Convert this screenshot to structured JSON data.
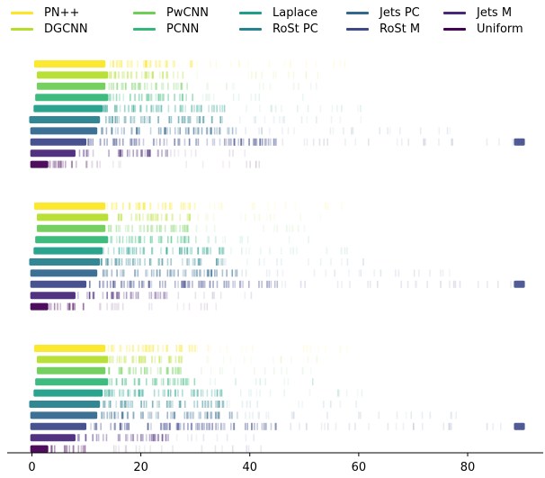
{
  "chart_data": {
    "type": "heatmap",
    "description_type": "strip",
    "x_axis": {
      "ticks": [
        0,
        20,
        40,
        60,
        80
      ],
      "range": [
        -4,
        94
      ]
    },
    "series": [
      {
        "name": "PN++",
        "color": "#fde725",
        "bands": [
          [
            0.4,
            13.5,
            0.95
          ],
          [
            13.5,
            30,
            0.35
          ],
          [
            30,
            59.5,
            0.1
          ]
        ]
      },
      {
        "name": "DGCNN",
        "color": "#b5de2b",
        "bands": [
          [
            0.9,
            14,
            0.95
          ],
          [
            14,
            29,
            0.35
          ],
          [
            29,
            53,
            0.1
          ]
        ]
      },
      {
        "name": "PwCNN",
        "color": "#6ece58",
        "bands": [
          [
            0.9,
            13.5,
            0.95
          ],
          [
            13.5,
            29,
            0.35
          ],
          [
            29,
            53,
            0.1
          ]
        ]
      },
      {
        "name": "PCNN",
        "color": "#35b779",
        "bands": [
          [
            0.6,
            14,
            0.95
          ],
          [
            14,
            30,
            0.35
          ],
          [
            30,
            52,
            0.1
          ]
        ]
      },
      {
        "name": "Laplace",
        "color": "#1f9e89",
        "bands": [
          [
            0.3,
            13,
            0.95
          ],
          [
            13,
            36,
            0.35
          ],
          [
            36,
            61,
            0.1
          ]
        ]
      },
      {
        "name": "RoSt PC",
        "color": "#26828e",
        "bands": [
          [
            -0.5,
            12.5,
            0.95
          ],
          [
            12.5,
            35,
            0.35
          ],
          [
            35,
            61,
            0.1
          ]
        ]
      },
      {
        "name": "Jets PC",
        "color": "#31688e",
        "bands": [
          [
            -0.3,
            12,
            0.95
          ],
          [
            12,
            38,
            0.35
          ],
          [
            38,
            78,
            0.1
          ]
        ]
      },
      {
        "name": "RoSt M",
        "color": "#3e4989",
        "bands": [
          [
            -0.3,
            10,
            0.95
          ],
          [
            10,
            45,
            0.35
          ],
          [
            45,
            90.5,
            0.12
          ],
          [
            88.5,
            90.5,
            0.9
          ]
        ]
      },
      {
        "name": "Jets M",
        "color": "#482878",
        "bands": [
          [
            -0.3,
            8,
            0.95
          ],
          [
            8,
            25,
            0.35
          ],
          [
            25,
            41,
            0.1
          ]
        ]
      },
      {
        "name": "Uniform",
        "color": "#440154",
        "bands": [
          [
            -0.3,
            3,
            0.95
          ],
          [
            3,
            10,
            0.35
          ],
          [
            10,
            42,
            0.1
          ]
        ]
      }
    ],
    "groups": [
      {
        "rows": 10
      },
      {
        "rows": 10
      },
      {
        "rows": 10
      }
    ],
    "legend_placement": "top",
    "grid": false
  }
}
